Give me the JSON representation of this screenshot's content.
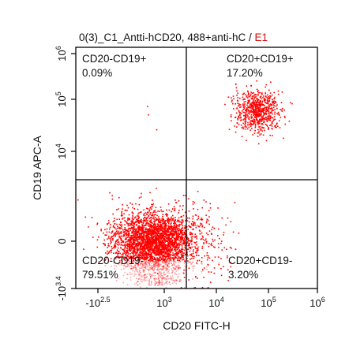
{
  "chart_data": {
    "type": "scatter",
    "title": "0(3)_C1_Antti-hCD20, 488+anti-hC",
    "title_separator": " / ",
    "gate_name": "E1",
    "gate_color": "#d01010",
    "point_color": "#ff0000",
    "xlabel": "CD20 FITC-H",
    "ylabel": "CD19 APC-A",
    "x_scale": "biexponential",
    "y_scale": "biexponential",
    "x_ticks": [
      {
        "base": "-10",
        "exp": "2.5"
      },
      {
        "base": "10",
        "exp": "3"
      },
      {
        "base": "10",
        "exp": "4"
      },
      {
        "base": "10",
        "exp": "5"
      },
      {
        "base": "10",
        "exp": "6"
      }
    ],
    "y_ticks": [
      {
        "base": "10",
        "exp": "6"
      },
      {
        "base": "10",
        "exp": "5"
      },
      {
        "base": "10",
        "exp": "4"
      },
      {
        "base": "",
        "exp": "",
        "plain": "0"
      },
      {
        "base": "-10",
        "exp": "3.4"
      }
    ],
    "quadrant_gate": {
      "x": 2600,
      "y": 2000
    },
    "quadrants": [
      {
        "id": "UL",
        "name": "CD20-CD19+",
        "percent": "0.09%"
      },
      {
        "id": "UR",
        "name": "CD20+CD19+",
        "percent": "17.20%"
      },
      {
        "id": "LL",
        "name": "CD20-CD19-",
        "percent": "79.51%"
      },
      {
        "id": "LR",
        "name": "CD20+CD19-",
        "percent": "3.20%"
      }
    ],
    "populations": [
      {
        "quadrant": "LL",
        "x_center": 350,
        "y_center": 0,
        "fraction": 0.7951
      },
      {
        "quadrant": "UR",
        "x_center": 60000,
        "y_center": 60000,
        "fraction": 0.172
      },
      {
        "quadrant": "LR",
        "x_center": 5000,
        "y_center": 0,
        "fraction": 0.032
      },
      {
        "quadrant": "UL",
        "x_center": 1000,
        "y_center": 20000,
        "fraction": 0.0009
      }
    ]
  }
}
